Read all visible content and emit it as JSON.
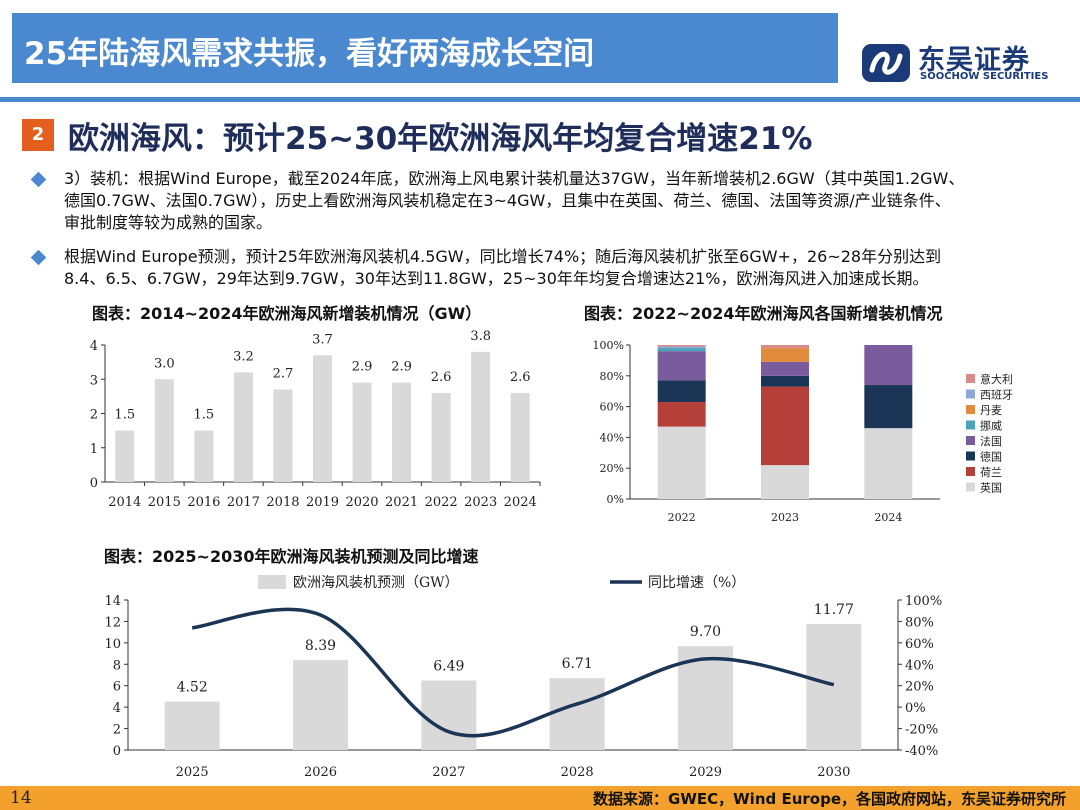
{
  "header": {
    "title": "25年陆海风需求共振，看好两海成长空间",
    "brand_cn": "东吴证券",
    "brand_en": "SOOCHOW SECURITIES",
    "accent": "#4a88cf"
  },
  "section": {
    "number": "2",
    "title": "欧洲海风：预计25~30年欧洲海风年均复合增速21%"
  },
  "bullets": [
    {
      "lines": [
        "3）装机：根据Wind Europe，截至2024年底，欧洲海上风电累计装机量达37GW，当年新增装机2.6GW（其中英国1.2GW、",
        "德国0.7GW、法国0.7GW），历史上看欧洲海风装机稳定在3~4GW，且集中在英国、荷兰、德国、法国等资源/产业链条件、",
        "审批制度等较为成熟的国家。"
      ]
    },
    {
      "lines": [
        "根据Wind Europe预测，预计25年欧洲海风装机4.5GW，同比增长74%；随后海风装机扩张至6GW+，26~28年分别达到",
        "8.4、6.5、6.7GW，29年达到9.7GW，30年达到11.8GW，25~30年年均复合增速达21%，欧洲海风进入加速成长期。"
      ]
    }
  ],
  "captions": {
    "c1": "图表：2014~2024年欧洲海风新增装机情况（GW）",
    "c2": "图表：2022~2024年欧洲海风各国新增装机情况",
    "c3": "图表：2025~2030年欧洲海风装机预测及同比增速"
  },
  "footer": {
    "page": "14",
    "source": "数据来源：GWEC，Wind Europe，各国政府网站，东吴证券研究所"
  },
  "chart_data": [
    {
      "type": "bar",
      "categories": [
        "2014",
        "2015",
        "2016",
        "2017",
        "2018",
        "2019",
        "2020",
        "2021",
        "2022",
        "2023",
        "2024"
      ],
      "values": [
        1.5,
        3.0,
        1.5,
        3.2,
        2.7,
        3.7,
        2.9,
        2.9,
        2.6,
        3.8,
        2.6
      ],
      "value_labels": [
        "1.5",
        "3.0",
        "1.5",
        "3.2",
        "2.7",
        "3.7",
        "2.9",
        "2.9",
        "2.6",
        "3.8",
        "2.6"
      ],
      "y_ticks": [
        "0",
        "1",
        "2",
        "3",
        "4"
      ],
      "ylim": [
        0,
        4
      ],
      "bar_color": "#d9d9d9",
      "grid": false
    },
    {
      "type": "bar",
      "stacked": true,
      "percent": true,
      "categories": [
        "2022",
        "2023",
        "2024"
      ],
      "y_ticks": [
        "0%",
        "20%",
        "40%",
        "60%",
        "80%",
        "100%"
      ],
      "ylim": [
        0,
        100
      ],
      "legend_position": "right",
      "series": [
        {
          "name": "英国",
          "color": "#d9d9d9",
          "values": [
            47,
            22,
            46
          ]
        },
        {
          "name": "荷兰",
          "color": "#b5403a",
          "values": [
            16,
            51,
            0
          ]
        },
        {
          "name": "德国",
          "color": "#1b3556",
          "values": [
            14,
            7,
            28
          ]
        },
        {
          "name": "法国",
          "color": "#7a5c9e",
          "values": [
            19,
            9,
            26
          ]
        },
        {
          "name": "挪威",
          "color": "#4aa3b8",
          "values": [
            2,
            0,
            0
          ]
        },
        {
          "name": "丹麦",
          "color": "#e08c3c",
          "values": [
            0,
            9,
            0
          ]
        },
        {
          "name": "西班牙",
          "color": "#8fa8d8",
          "values": [
            1,
            0,
            0
          ]
        },
        {
          "name": "意大利",
          "color": "#d98a8a",
          "values": [
            1,
            2,
            0
          ]
        }
      ]
    },
    {
      "type": "bar+line",
      "categories": [
        "2025",
        "2026",
        "2027",
        "2028",
        "2029",
        "2030"
      ],
      "bars": {
        "name": "欧洲海风装机预测（GW）",
        "values": [
          4.52,
          8.39,
          6.49,
          6.71,
          9.7,
          11.77
        ],
        "value_labels": [
          "4.52",
          "8.39",
          "6.49",
          "6.71",
          "9.70",
          "11.77"
        ],
        "color": "#d9d9d9"
      },
      "line": {
        "name": "同比增速（%）",
        "values": [
          74,
          86,
          -23,
          3,
          45,
          21
        ],
        "color": "#1b3556"
      },
      "y_left_ticks": [
        "0",
        "2",
        "4",
        "6",
        "8",
        "10",
        "12",
        "14"
      ],
      "ylim_left": [
        0,
        14
      ],
      "y_right_ticks": [
        "-40%",
        "-20%",
        "0%",
        "20%",
        "40%",
        "60%",
        "80%",
        "100%"
      ],
      "ylim_right": [
        -40,
        100
      ],
      "legend_position": "top"
    }
  ]
}
